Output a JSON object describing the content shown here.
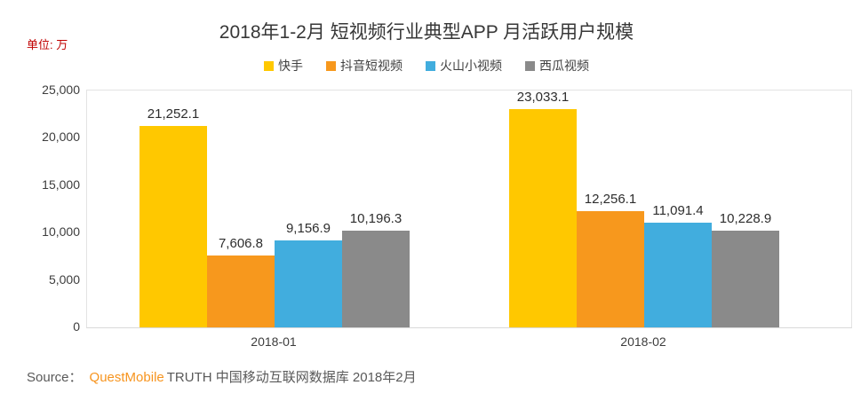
{
  "title": "2018年1-2月 短视频行业典型APP 月活跃用户规模",
  "unit_label": "单位: 万",
  "legend": [
    {
      "label": "快手",
      "color": "#FFC800"
    },
    {
      "label": "抖音短视频",
      "color": "#F7981D"
    },
    {
      "label": "火山小视频",
      "color": "#41ADDE"
    },
    {
      "label": "西瓜视频",
      "color": "#8A8A8A"
    }
  ],
  "chart_data": {
    "type": "bar",
    "title": "2018年1-2月 短视频行业典型APP 月活跃用户规模",
    "unit": "万",
    "categories": [
      "2018-01",
      "2018-02"
    ],
    "series": [
      {
        "name": "快手",
        "color": "#FFC800",
        "values": [
          21252.1,
          23033.1
        ]
      },
      {
        "name": "抖音短视频",
        "color": "#F7981D",
        "values": [
          7606.8,
          12256.1
        ]
      },
      {
        "name": "火山小视频",
        "color": "#41ADDE",
        "values": [
          9156.9,
          11091.4
        ]
      },
      {
        "name": "西瓜视频",
        "color": "#8A8A8A",
        "values": [
          10196.3,
          10228.9
        ]
      }
    ],
    "data_labels": [
      [
        "21,252.1",
        "23,033.1"
      ],
      [
        "7,606.8",
        "12,256.1"
      ],
      [
        "9,156.9",
        "11,091.4"
      ],
      [
        "10,196.3",
        "10,228.9"
      ]
    ],
    "xlabel": "",
    "ylabel": "",
    "ylim": [
      0,
      25000
    ],
    "ytick_step": 5000,
    "yticks": [
      "0",
      "5,000",
      "10,000",
      "15,000",
      "20,000",
      "25,000"
    ],
    "grid": false,
    "legend_position": "top"
  },
  "source": {
    "prefix": "Source：",
    "brand": "QuestMobile",
    "rest": "TRUTH 中国移动互联网数据库 2018年2月",
    "brand_color": "#F7941E",
    "text_color": "#595959"
  }
}
